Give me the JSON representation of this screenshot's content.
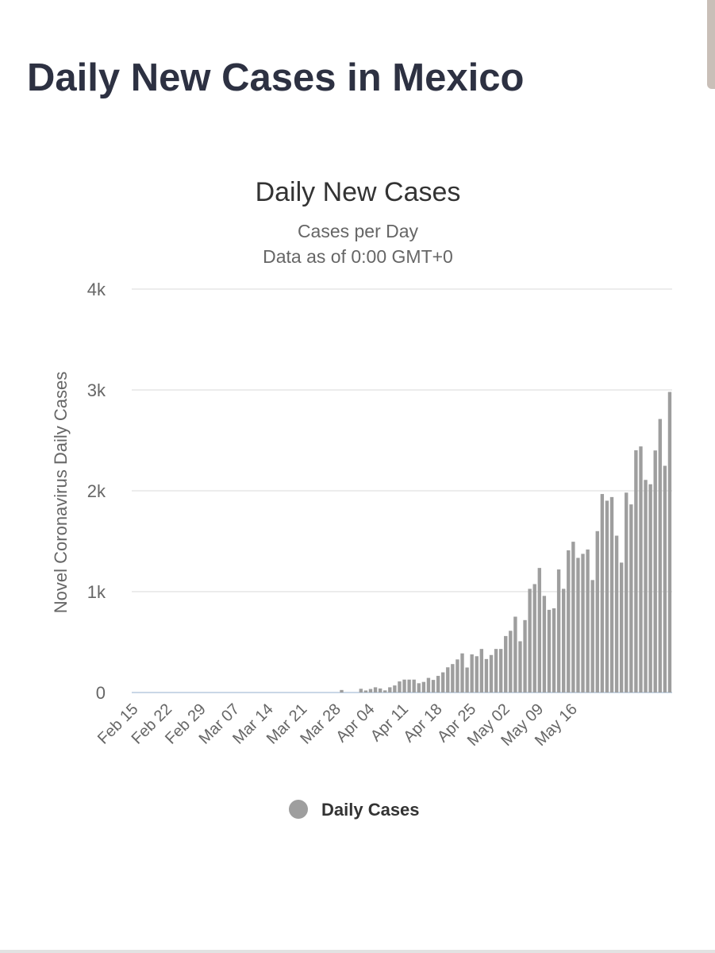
{
  "page": {
    "title": "Daily New Cases in Mexico"
  },
  "chart_data": {
    "type": "bar",
    "title": "Daily New Cases",
    "subtitle": "Cases per Day",
    "subtitle2": "Data as of 0:00 GMT+0",
    "ylabel": "Novel Coronavirus Daily Cases",
    "xlabel": "",
    "ylim": [
      0,
      4000
    ],
    "yticks": [
      {
        "value": 0,
        "label": "0"
      },
      {
        "value": 1000,
        "label": "1k"
      },
      {
        "value": 2000,
        "label": "2k"
      },
      {
        "value": 3000,
        "label": "3k"
      },
      {
        "value": 4000,
        "label": "4k"
      }
    ],
    "xticks": [
      "Feb 15",
      "Feb 22",
      "Feb 29",
      "Mar 07",
      "Mar 14",
      "Mar 21",
      "Mar 28",
      "Apr 04",
      "Apr 11",
      "Apr 18",
      "Apr 25",
      "May 02",
      "May 09",
      "May 16"
    ],
    "start_date": "Feb 15",
    "series": [
      {
        "name": "Daily Cases",
        "color": "#9e9e9e",
        "values": [
          0,
          0,
          0,
          0,
          0,
          0,
          0,
          0,
          0,
          0,
          0,
          0,
          0,
          0,
          0,
          0,
          0,
          0,
          0,
          0,
          0,
          0,
          0,
          0,
          0,
          0,
          0,
          0,
          0,
          0,
          0,
          0,
          0,
          0,
          0,
          0,
          0,
          0,
          0,
          0,
          0,
          0,
          0,
          25,
          0,
          0,
          0,
          37,
          20,
          35,
          52,
          40,
          21,
          52,
          70,
          110,
          128,
          128,
          128,
          92,
          105,
          145,
          125,
          165,
          200,
          250,
          282,
          328,
          388,
          248,
          378,
          360,
          432,
          332,
          372,
          432,
          432,
          560,
          612,
          752,
          508,
          718,
          1028,
          1075,
          1235,
          958,
          820,
          835,
          1220,
          1028,
          1410,
          1495,
          1335,
          1375,
          1418,
          1115,
          1600,
          1968,
          1902,
          1938,
          1555,
          1288,
          1982,
          1865,
          2402,
          2440,
          2108,
          2065,
          2400,
          2712,
          2248,
          2980
        ]
      }
    ]
  },
  "legend": {
    "label": "Daily Cases",
    "color": "#9e9e9e"
  }
}
